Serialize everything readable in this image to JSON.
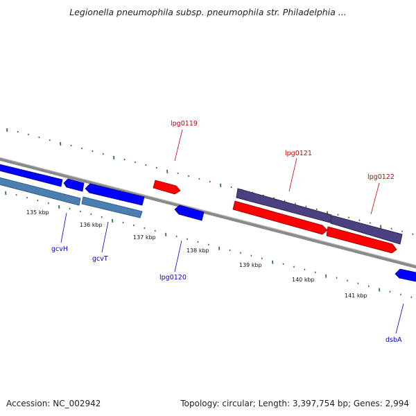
{
  "header": {
    "title": "Legionella pneumophila subsp. pneumophila str. Philadelphia ..."
  },
  "footer": {
    "accession": "Accession: NC_002942",
    "topology": "Topology: circular; Length: 3,397,754 bp; Genes: 2,994"
  },
  "colors": {
    "backbone": "#8a8a8a",
    "forward_gene": "#ff0000",
    "reverse_gene": "#0000ff",
    "forward_operon": "#4b4080",
    "reverse_operon": "#4a7fb0",
    "tick": "#2e7d2e",
    "forward_label": "#cc0000",
    "reverse_label": "#0000cc"
  },
  "ruler": {
    "labels": [
      "135 kbp",
      "136 kbp",
      "137 kbp",
      "138 kbp",
      "139 kbp",
      "140 kbp",
      "141 kbp"
    ]
  },
  "genes": [
    {
      "name": "gcvH",
      "strand": "reverse"
    },
    {
      "name": "gcvT",
      "strand": "reverse"
    },
    {
      "name": "lpg0119",
      "strand": "forward"
    },
    {
      "name": "lpg0120",
      "strand": "reverse"
    },
    {
      "name": "lpg0121",
      "strand": "forward"
    },
    {
      "name": "lpg0122",
      "strand": "forward"
    },
    {
      "name": "dsbA",
      "strand": "reverse"
    }
  ]
}
